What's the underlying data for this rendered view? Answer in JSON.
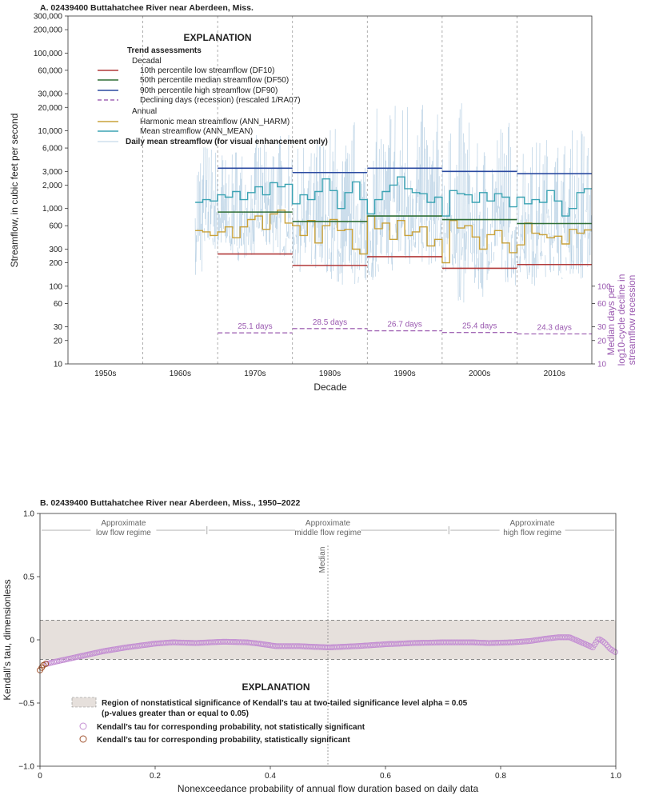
{
  "chart_data": [
    {
      "type": "line",
      "title": "A. 02439400 Buttahatchee River near Aberdeen, Miss.",
      "xlabel": "Decade",
      "ylabel": "Streamflow, in cubic feet per second",
      "y2label_lines": [
        "Median days per",
        "log10-cycle decline in",
        "streamflow recession"
      ],
      "yscale": "log",
      "ylim": [
        10,
        300000
      ],
      "xlim": [
        1945,
        2015
      ],
      "decade_labels": [
        "1950s",
        "1960s",
        "1970s",
        "1980s",
        "1990s",
        "2000s",
        "2010s"
      ],
      "y_ticks": [
        10,
        20,
        30,
        60,
        100,
        200,
        300,
        600,
        1000,
        2000,
        3000,
        6000,
        10000,
        20000,
        30000,
        60000,
        100000,
        200000,
        300000
      ],
      "y_tick_labels": [
        "10",
        "20",
        "30",
        "60",
        "100",
        "200",
        "300",
        "600",
        "1,000",
        "2,000",
        "3,000",
        "6,000",
        "10,000",
        "20,000",
        "30,000",
        "60,000",
        "100,000",
        "200,000",
        "300,000"
      ],
      "y2_ticks": [
        10,
        20,
        30,
        60,
        100
      ],
      "y2_tick_labels": [
        "10",
        "20",
        "30",
        "60",
        "100"
      ],
      "legend": {
        "heading": "EXPLANATION",
        "subheading": "Trend assessments",
        "group1": "Decadal",
        "group2": "Annual",
        "items": [
          {
            "label": "10th percentile low streamflow (DF10)",
            "color": "#b23a3a",
            "style": "solid"
          },
          {
            "label": "50th percentile median streamflow (DF50)",
            "color": "#2f6e35",
            "style": "solid"
          },
          {
            "label": "90th percentile high streamflow (DF90)",
            "color": "#2b4aa0",
            "style": "solid"
          },
          {
            "label": "Declining days (recession) (rescaled 1/RA07)",
            "color": "#a267b5",
            "style": "dashed"
          },
          {
            "label": "Harmonic mean streamflow (ANN_HARM)",
            "color": "#c9a23a",
            "style": "solid"
          },
          {
            "label": "Mean streamflow (ANN_MEAN)",
            "color": "#3ba3b3",
            "style": "solid"
          },
          {
            "label": "Daily mean streamflow (for visual enhancement only)",
            "color": "#9fc3dc",
            "style": "thin",
            "bold": true
          }
        ]
      },
      "decades": [
        {
          "start": 1965,
          "end": 1975,
          "df10": 260,
          "df50": 900,
          "df90": 3300,
          "recession_days": 25.1,
          "recession_label": "25.1 days"
        },
        {
          "start": 1975,
          "end": 1985,
          "df10": 185,
          "df50": 680,
          "df90": 2900,
          "recession_days": 28.5,
          "recession_label": "28.5 days"
        },
        {
          "start": 1985,
          "end": 1995,
          "df10": 240,
          "df50": 800,
          "df90": 3300,
          "recession_days": 26.7,
          "recession_label": "26.7 days"
        },
        {
          "start": 1995,
          "end": 2005,
          "df10": 170,
          "df50": 720,
          "df90": 3000,
          "recession_days": 25.4,
          "recession_label": "25.4 days"
        },
        {
          "start": 2005,
          "end": 2015,
          "df10": 190,
          "df50": 640,
          "df90": 2800,
          "recession_days": 24.3,
          "recession_label": "24.3 days"
        }
      ],
      "years": [
        1962,
        1963,
        1964,
        1965,
        1966,
        1967,
        1968,
        1969,
        1970,
        1971,
        1972,
        1973,
        1974,
        1975,
        1976,
        1977,
        1978,
        1979,
        1980,
        1981,
        1982,
        1983,
        1984,
        1985,
        1986,
        1987,
        1988,
        1989,
        1990,
        1991,
        1992,
        1993,
        1994,
        1995,
        1996,
        1997,
        1998,
        1999,
        2000,
        2001,
        2002,
        2003,
        2004,
        2005,
        2006,
        2007,
        2008,
        2009,
        2010,
        2011,
        2012,
        2013,
        2014
      ],
      "ann_mean": [
        1200,
        1300,
        1250,
        1500,
        1400,
        1650,
        1300,
        1600,
        1900,
        1500,
        2150,
        1900,
        2050,
        1150,
        1500,
        1300,
        1650,
        2400,
        1700,
        1000,
        1600,
        2200,
        1300,
        850,
        1300,
        1650,
        2000,
        2550,
        1800,
        1600,
        1550,
        1200,
        1400,
        800,
        1700,
        1550,
        1500,
        1200,
        1600,
        1250,
        1550,
        1400,
        1050,
        1400,
        1150,
        1300,
        1200,
        1700,
        1250,
        800,
        1000,
        1600,
        1800
      ],
      "ann_harm": [
        520,
        500,
        450,
        500,
        580,
        420,
        580,
        720,
        800,
        540,
        850,
        950,
        650,
        600,
        450,
        700,
        360,
        600,
        720,
        520,
        540,
        300,
        260,
        800,
        550,
        650,
        400,
        700,
        450,
        500,
        580,
        330,
        400,
        200,
        700,
        560,
        600,
        430,
        300,
        460,
        520,
        360,
        270,
        340,
        650,
        480,
        460,
        420,
        440,
        350,
        540,
        480,
        530
      ],
      "daily_envelope": [
        [
          1962,
          140,
          8000
        ],
        [
          1963,
          250,
          8000
        ],
        [
          1964,
          280,
          7000
        ],
        [
          1965,
          260,
          6500
        ],
        [
          1966,
          260,
          5000
        ],
        [
          1967,
          210,
          8000
        ],
        [
          1968,
          230,
          7000
        ],
        [
          1969,
          240,
          7500
        ],
        [
          1970,
          300,
          9000
        ],
        [
          1971,
          280,
          7000
        ],
        [
          1972,
          260,
          12000
        ],
        [
          1973,
          240,
          10000
        ],
        [
          1974,
          200,
          9000
        ],
        [
          1975,
          160,
          6000
        ],
        [
          1976,
          130,
          7000
        ],
        [
          1977,
          170,
          6000
        ],
        [
          1978,
          140,
          11000
        ],
        [
          1979,
          150,
          9500
        ],
        [
          1980,
          120,
          13000
        ],
        [
          1981,
          95,
          6000
        ],
        [
          1982,
          150,
          9000
        ],
        [
          1983,
          100,
          16000
        ],
        [
          1984,
          90,
          8000
        ],
        [
          1985,
          120,
          7000
        ],
        [
          1986,
          130,
          20000
        ],
        [
          1987,
          140,
          12000
        ],
        [
          1988,
          150,
          45000
        ],
        [
          1989,
          160,
          25000
        ],
        [
          1990,
          170,
          40000
        ],
        [
          1991,
          200,
          30000
        ],
        [
          1992,
          190,
          22000
        ],
        [
          1993,
          180,
          15000
        ],
        [
          1994,
          200,
          18000
        ],
        [
          1995,
          110,
          12000
        ],
        [
          1996,
          150,
          10000
        ],
        [
          1997,
          60,
          25000
        ],
        [
          1998,
          120,
          18000
        ],
        [
          1999,
          90,
          7000
        ],
        [
          2000,
          70,
          8000
        ],
        [
          2001,
          120,
          12000
        ],
        [
          2002,
          140,
          15000
        ],
        [
          2003,
          110,
          16000
        ],
        [
          2004,
          100,
          9000
        ],
        [
          2005,
          140,
          8000
        ],
        [
          2006,
          120,
          12000
        ],
        [
          2007,
          95,
          8000
        ],
        [
          2008,
          130,
          9000
        ],
        [
          2009,
          150,
          16000
        ],
        [
          2010,
          130,
          9000
        ],
        [
          2011,
          120,
          8000
        ],
        [
          2012,
          140,
          11000
        ],
        [
          2013,
          120,
          14000
        ],
        [
          2014,
          160,
          10000
        ],
        [
          2015,
          150,
          12000
        ]
      ]
    },
    {
      "type": "scatter",
      "title": "B. 02439400 Buttahatchee River near Aberdeen, Miss., 1950–2022",
      "xlabel": "Nonexceedance probability of annual flow duration based on daily data",
      "ylabel": "Kendall’s tau, dimensionless",
      "xlim": [
        0,
        1
      ],
      "ylim": [
        -1,
        1
      ],
      "x_ticks": [
        0,
        0.2,
        0.4,
        0.6,
        0.8,
        1
      ],
      "x_tick_labels": [
        "0",
        "0.2",
        "0.4",
        "0.6",
        "0.8",
        "1.0"
      ],
      "y_ticks": [
        -1,
        -0.5,
        0,
        0.5,
        1
      ],
      "y_tick_labels": [
        "−1.0",
        "−0.5",
        "0",
        "0.5",
        "1.0"
      ],
      "nonsignificance_band": [
        -0.155,
        0.155
      ],
      "median_x": 0.5,
      "median_label": "Median",
      "regime_bounds": [
        0.29,
        0.71
      ],
      "regimes": [
        {
          "lines": [
            "Approximate",
            "low flow regime"
          ],
          "x": 0.145
        },
        {
          "lines": [
            "Approximate",
            "middle flow regime"
          ],
          "x": 0.5
        },
        {
          "lines": [
            "Approximate",
            "high flow regime"
          ],
          "x": 0.855
        }
      ],
      "tau_curve": [
        [
          0,
          -0.22
        ],
        [
          0.005,
          -0.2
        ],
        [
          0.02,
          -0.18
        ],
        [
          0.05,
          -0.15
        ],
        [
          0.08,
          -0.12
        ],
        [
          0.11,
          -0.09
        ],
        [
          0.15,
          -0.06
        ],
        [
          0.2,
          -0.03
        ],
        [
          0.23,
          -0.02
        ],
        [
          0.27,
          -0.025
        ],
        [
          0.32,
          -0.015
        ],
        [
          0.36,
          -0.02
        ],
        [
          0.38,
          -0.03
        ],
        [
          0.41,
          -0.05
        ],
        [
          0.45,
          -0.05
        ],
        [
          0.5,
          -0.06
        ],
        [
          0.55,
          -0.05
        ],
        [
          0.6,
          -0.035
        ],
        [
          0.65,
          -0.025
        ],
        [
          0.7,
          -0.02
        ],
        [
          0.75,
          -0.02
        ],
        [
          0.78,
          -0.025
        ],
        [
          0.82,
          -0.02
        ],
        [
          0.85,
          -0.01
        ],
        [
          0.88,
          0.01
        ],
        [
          0.9,
          0.02
        ],
        [
          0.92,
          0.02
        ],
        [
          0.94,
          -0.02
        ],
        [
          0.96,
          -0.06
        ],
        [
          0.97,
          0.01
        ],
        [
          0.98,
          -0.02
        ],
        [
          0.99,
          -0.07
        ],
        [
          1.0,
          -0.1
        ]
      ],
      "significant_points": [
        [
          0,
          -0.24
        ],
        [
          0.003,
          -0.22
        ],
        [
          0.006,
          -0.2
        ],
        [
          0.01,
          -0.19
        ]
      ],
      "legend": {
        "heading": "EXPLANATION",
        "items": [
          {
            "label1": "Region of nonstatistical significance of Kendall’s tau at two-tailed significance level alpha = 0.05",
            "label2": "(p-values greater than or equal to 0.05)",
            "kind": "band",
            "color": "#e6e0dc"
          },
          {
            "label1": "Kendall’s tau for corresponding probability, not statistically significant",
            "kind": "circle",
            "color": "#c48fd3"
          },
          {
            "label1": "Kendall’s tau for corresponding probability, statistically significant",
            "kind": "circle",
            "color": "#a0522d"
          }
        ]
      }
    }
  ]
}
